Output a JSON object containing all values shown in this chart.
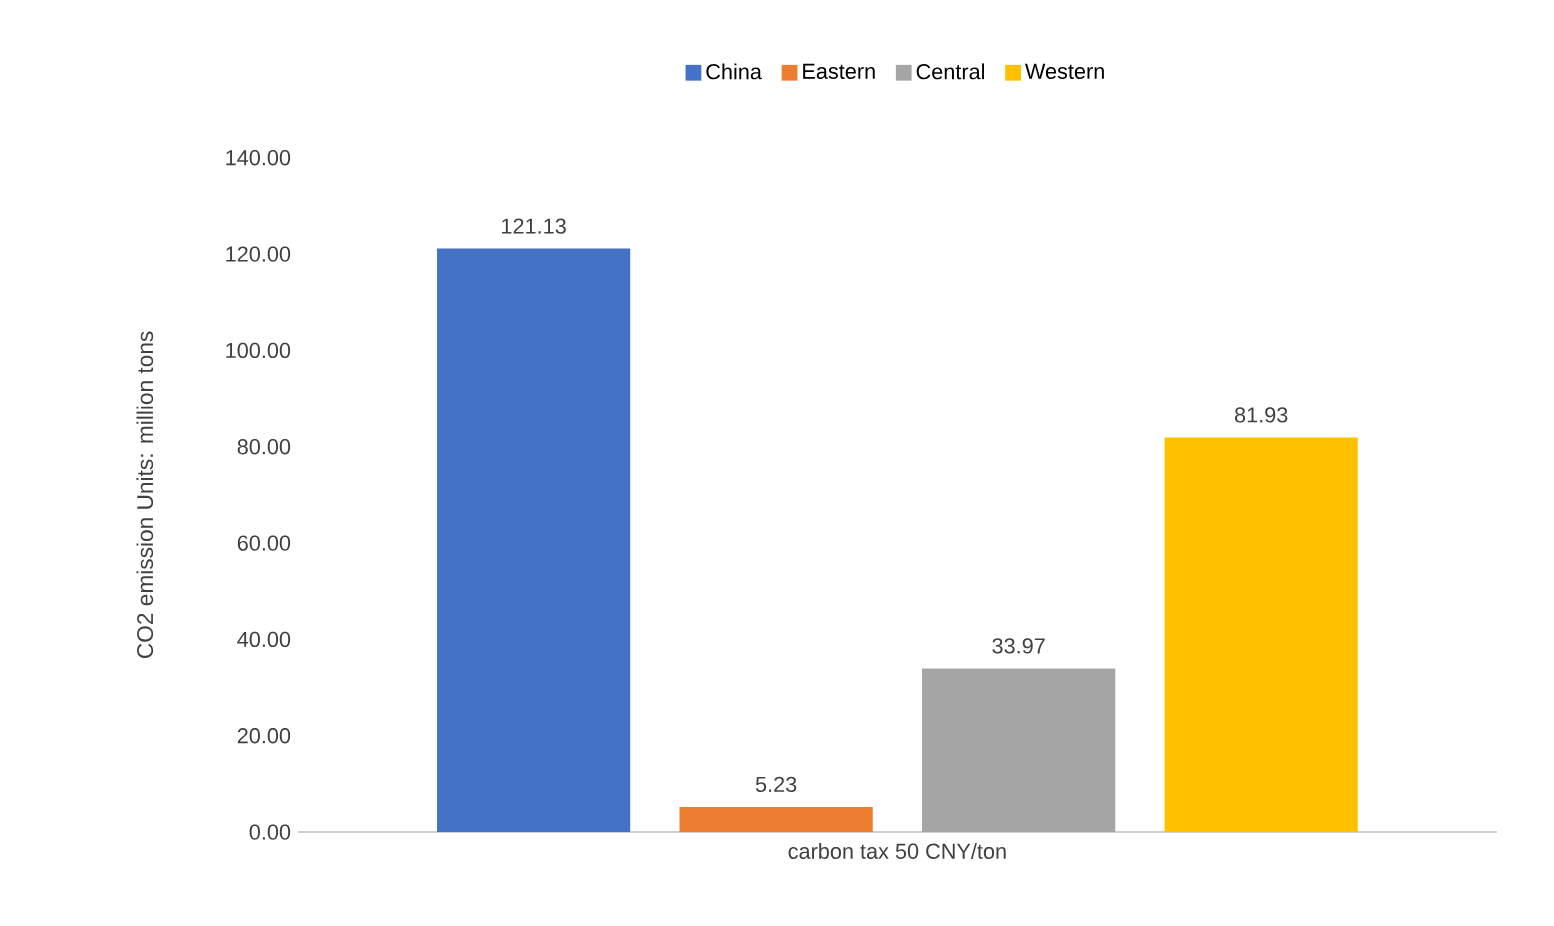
{
  "chart_data": {
    "type": "bar",
    "categories": [
      "carbon tax 50 CNY/ton"
    ],
    "ylabel": "CO2 emission   Units: million tons",
    "series": [
      {
        "name": "China",
        "color": "#4472c4",
        "values": [
          121.13
        ]
      },
      {
        "name": "Eastern",
        "color": "#ed7d31",
        "values": [
          5.23
        ]
      },
      {
        "name": "Central",
        "color": "#a5a5a5",
        "values": [
          33.97
        ]
      },
      {
        "name": "Western",
        "color": "#ffc000",
        "values": [
          81.93
        ]
      }
    ],
    "ylim": [
      0,
      140
    ],
    "yticks": [
      {
        "value": 0,
        "label": "0.00"
      },
      {
        "value": 20,
        "label": "20.00"
      },
      {
        "value": 40,
        "label": "40.00"
      },
      {
        "value": 60,
        "label": "60.00"
      },
      {
        "value": 80,
        "label": "80.00"
      },
      {
        "value": 100,
        "label": "100.00"
      },
      {
        "value": 120,
        "label": "120.00"
      },
      {
        "value": 140,
        "label": "140.00"
      }
    ],
    "data_labels": true,
    "legend": "top",
    "grid": false
  }
}
